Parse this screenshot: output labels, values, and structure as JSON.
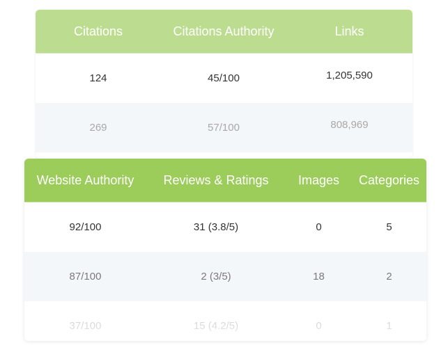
{
  "back_table": {
    "headers": [
      "Citations",
      "Citations Authority",
      "Links"
    ],
    "rows": [
      [
        "124",
        "45/100",
        "1,205,590"
      ],
      [
        "269",
        "57/100",
        "808,969"
      ]
    ],
    "header_color": "#bcdd8f"
  },
  "front_table": {
    "headers": [
      "Website Authority",
      "Reviews & Ratings",
      "Images",
      "Categories"
    ],
    "rows": [
      [
        "92/100",
        "31 (3.8/5)",
        "0",
        "5"
      ],
      [
        "87/100",
        "2 (3/5)",
        "18",
        "2"
      ],
      [
        "37/100",
        "15 (4.2/5)",
        "0",
        "1"
      ]
    ],
    "header_color": "#9ccc5a"
  }
}
